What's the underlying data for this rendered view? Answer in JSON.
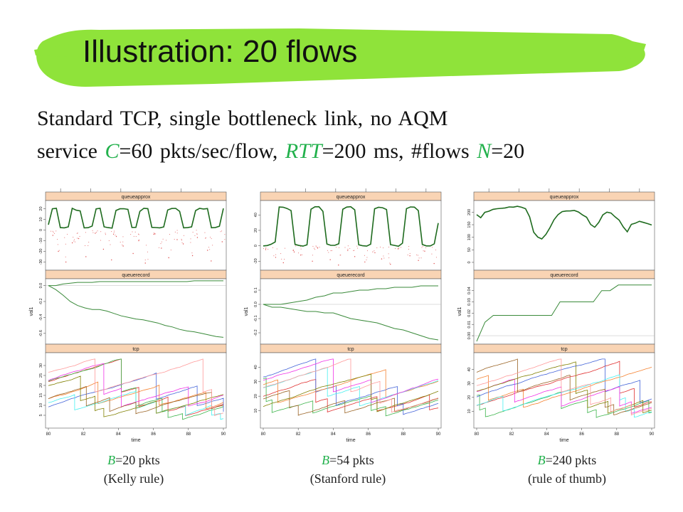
{
  "slide": {
    "title": "Illustration: 20 flows",
    "subtitle_line1": "Standard TCP, single bottleneck link, no AQM",
    "subtitle_line2": {
      "p1": "service ",
      "C": "C",
      "p2": "=60 pkts/sec/flow, ",
      "RTT": "RTT",
      "p3": "=200 ms, #flows ",
      "N": "N",
      "p4": "=20"
    },
    "colors": {
      "banner": "#8fe33a",
      "accent_text": "#22b14c"
    }
  },
  "chart_data": [
    {
      "type": "line",
      "panel_labels": [
        "queueapprox",
        "queuerecord",
        "tcp"
      ],
      "xlabel": "time",
      "ylabel": "val1",
      "xticks": [
        "80",
        "82",
        "84",
        "86",
        "88",
        "90"
      ],
      "xlim": [
        80,
        90
      ],
      "panels": [
        {
          "name": "queueapprox",
          "ylim": [
            -35,
            25
          ],
          "yticks": [
            "-30",
            "-20",
            "-10",
            "0",
            "10",
            "20"
          ],
          "series": [
            {
              "color": "#1e6b1e",
              "values": [
                5,
                20,
                20,
                2,
                2,
                3,
                20,
                19,
                18,
                2,
                2,
                4,
                20,
                20,
                3,
                2,
                2,
                18,
                20,
                20,
                19,
                2,
                3,
                18,
                20,
                20,
                3,
                2,
                2,
                3,
                19,
                20,
                20,
                18,
                2,
                2,
                3,
                18,
                20,
                20,
                20,
                2,
                2,
                4,
                20
              ]
            },
            {
              "color": "#e05050",
              "scatter": true,
              "values": [
                -5,
                -20,
                -30,
                -12,
                -8,
                -25,
                -3,
                -18,
                -28,
                -6,
                -15,
                -22,
                -10,
                -31,
                -4,
                -17,
                -26,
                -9,
                -13,
                -24,
                -7,
                -19,
                -29,
                -11
              ]
            }
          ]
        },
        {
          "name": "queuerecord",
          "ylim": [
            -0.7,
            0.05
          ],
          "yticks": [
            "-0.6",
            "-0.4",
            "-0.2",
            "0.0"
          ],
          "series": [
            {
              "color": "#3a8a3a",
              "values": [
                0,
                0,
                0.02,
                0.03,
                0.04,
                0.04,
                0.04,
                0.05,
                0.05,
                0.05,
                0.05,
                0.05,
                0.05,
                0.05,
                0.05,
                0.05,
                0.05,
                0.05,
                0.05,
                0.05,
                0.06,
                0.06,
                0.06,
                0.06,
                0.06
              ]
            },
            {
              "color": "#3a8a3a",
              "values": [
                0,
                -0.05,
                -0.12,
                -0.2,
                -0.25,
                -0.28,
                -0.3,
                -0.3,
                -0.32,
                -0.35,
                -0.38,
                -0.4,
                -0.42,
                -0.43,
                -0.45,
                -0.47,
                -0.5,
                -0.52,
                -0.55,
                -0.57,
                -0.58,
                -0.6,
                -0.62,
                -0.64,
                -0.65
              ]
            }
          ]
        },
        {
          "name": "tcp",
          "ylim": [
            0,
            35
          ],
          "yticks": [
            "5",
            "10",
            "15",
            "20",
            "25",
            "30"
          ]
        }
      ]
    },
    {
      "type": "line",
      "panel_labels": [
        "queueapprox",
        "queuerecord",
        "tcp"
      ],
      "xlabel": "time",
      "ylabel": "val1",
      "xticks": [
        "80",
        "82",
        "84",
        "86",
        "88",
        "90"
      ],
      "xlim": [
        80,
        90
      ],
      "panels": [
        {
          "name": "queueapprox",
          "ylim": [
            -28,
            55
          ],
          "yticks": [
            "-20",
            "0",
            "20",
            "40"
          ],
          "series": [
            {
              "color": "#1e6b1e",
              "values": [
                0,
                0,
                2,
                5,
                50,
                50,
                48,
                45,
                2,
                0,
                0,
                1,
                48,
                50,
                50,
                45,
                2,
                0,
                0,
                3,
                48,
                50,
                50,
                46,
                2,
                0,
                0,
                2,
                48,
                50,
                50,
                47,
                2,
                0,
                0,
                4,
                48,
                50,
                50,
                45,
                2,
                0,
                0,
                3,
                30
              ]
            },
            {
              "color": "#e05050",
              "scatter": true,
              "values": [
                -5,
                -15,
                -22,
                -8,
                -12,
                -20,
                -3,
                -18,
                -25,
                -6,
                -14,
                -21,
                -9,
                -17,
                -24,
                -4,
                -13,
                -19,
                -7,
                -23
              ]
            }
          ]
        },
        {
          "name": "queuerecord",
          "ylim": [
            -0.26,
            0.16
          ],
          "yticks": [
            "-0.2",
            "-0.1",
            "0.0",
            "0.1"
          ],
          "series": [
            {
              "color": "#3a8a3a",
              "values": [
                0,
                0,
                0,
                0.01,
                0.02,
                0.03,
                0.05,
                0.06,
                0.08,
                0.08,
                0.09,
                0.1,
                0.1,
                0.11,
                0.11,
                0.12,
                0.12,
                0.12,
                0.13,
                0.13,
                0.13
              ]
            },
            {
              "color": "#3a8a3a",
              "values": [
                0,
                -0.02,
                -0.02,
                -0.03,
                -0.04,
                -0.05,
                -0.05,
                -0.06,
                -0.06,
                -0.08,
                -0.1,
                -0.11,
                -0.12,
                -0.13,
                -0.15,
                -0.17,
                -0.18,
                -0.2,
                -0.22,
                -0.24,
                -0.25
              ]
            }
          ]
        },
        {
          "name": "tcp",
          "ylim": [
            0,
            48
          ],
          "yticks": [
            "10",
            "20",
            "30",
            "40"
          ]
        }
      ]
    },
    {
      "type": "line",
      "panel_labels": [
        "queueapprox",
        "queuerecord",
        "tcp"
      ],
      "xlabel": "time",
      "ylabel": "val1",
      "xticks": [
        "80",
        "82",
        "84",
        "86",
        "88",
        "90"
      ],
      "xlim": [
        80,
        90
      ],
      "panels": [
        {
          "name": "queueapprox",
          "ylim": [
            -20,
            235
          ],
          "yticks": [
            "0",
            "50",
            "100",
            "150",
            "200"
          ],
          "series": [
            {
              "color": "#1e6b1e",
              "values": [
                190,
                180,
                200,
                205,
                210,
                212,
                215,
                218,
                220,
                222,
                225,
                220,
                215,
                180,
                120,
                100,
                95,
                110,
                140,
                170,
                190,
                200,
                205,
                205,
                205,
                200,
                190,
                180,
                150,
                140,
                160,
                190,
                200,
                195,
                180,
                170,
                140,
                120,
                150,
                155,
                165,
                160,
                155,
                150
              ]
            }
          ]
        },
        {
          "name": "queuerecord",
          "ylim": [
            -0.005,
            0.048
          ],
          "yticks": [
            "0.00",
            "0.01",
            "0.02",
            "0.03",
            "0.04"
          ],
          "series": [
            {
              "color": "#3a8a3a",
              "values": [
                -0.005,
                0.012,
                0.018,
                0.018,
                0.018,
                0.018,
                0.018,
                0.018,
                0.018,
                0.018,
                0.03,
                0.03,
                0.03,
                0.03,
                0.03,
                0.04,
                0.04,
                0.045,
                0.045,
                0.045,
                0.045,
                0.045
              ]
            }
          ]
        },
        {
          "name": "tcp",
          "ylim": [
            0,
            50
          ],
          "yticks": [
            "10",
            "20",
            "30",
            "40"
          ]
        }
      ]
    }
  ],
  "captions": [
    {
      "b": "B",
      "val": "=20 pkts",
      "rule": "(Kelly rule)"
    },
    {
      "b": "B",
      "val": "=54 pkts",
      "rule": "(Stanford rule)"
    },
    {
      "b": "B",
      "val": "=240 pkts",
      "rule": "(rule of thumb)"
    }
  ]
}
